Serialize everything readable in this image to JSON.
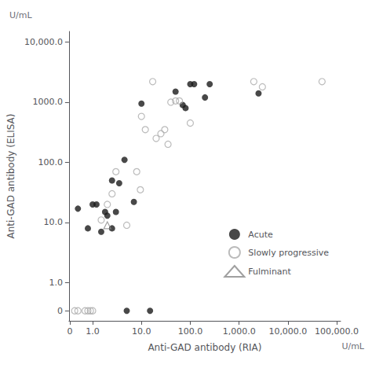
{
  "chart_data": {
    "type": "scatter",
    "xlabel": "Anti-GAD antibody (RIA)",
    "ylabel": "Anti-GAD antibody (ELISA)",
    "annotations": [
      "U/mL",
      "U/mL"
    ],
    "series": [
      {
        "name": "Acute",
        "color": "#1a1a1a",
        "marker": "circle",
        "x": [
          0.5,
          0.8,
          1.0,
          1.2,
          1.5,
          1.8,
          2.0,
          2.5,
          2.5,
          3.0,
          3.5,
          4.5,
          7.0,
          10.0,
          50.0,
          70.0,
          80.0,
          100.0,
          120.0,
          200.0,
          250.0,
          2500.0,
          5.0,
          15.0
        ],
        "values": [
          17.0,
          8.0,
          20.0,
          20.0,
          7.0,
          15.0,
          13.0,
          8.0,
          50.0,
          15.0,
          45.0,
          110.0,
          22.0,
          950.0,
          1500.0,
          900.0,
          800.0,
          2000.0,
          2000.0,
          1200.0,
          2000.0,
          1400.0,
          0.0,
          0.0
        ]
      },
      {
        "name": "Slowly progressive",
        "color": "#aaaaaa",
        "marker": "open_circle",
        "x": [
          0.3,
          0.5,
          0.7,
          0.8,
          0.9,
          1.0,
          1.5,
          2.0,
          2.5,
          3.0,
          5.0,
          8.0,
          9.5,
          20.0,
          25.0,
          30.0,
          35.0,
          40.0,
          50.0,
          60.0,
          100.0,
          17.0,
          2000.0,
          3000.0,
          50000.0,
          10.0,
          12.0
        ],
        "values": [
          0.0,
          0.0,
          0.0,
          0.0,
          0.0,
          0.0,
          11.0,
          20.0,
          30.0,
          70.0,
          9.0,
          70.0,
          35.0,
          250.0,
          300.0,
          350.0,
          200.0,
          1000.0,
          1050.0,
          1050.0,
          450.0,
          2200.0,
          2200.0,
          1800.0,
          2200.0,
          580.0,
          350.0
        ]
      },
      {
        "name": "Fulminant",
        "color": "#888888",
        "marker": "open_triangle",
        "x": [
          2.0
        ],
        "values": [
          9.0
        ]
      }
    ],
    "xlim": [
      -0.05,
      120000
    ],
    "ylim": [
      -0.5,
      15000
    ],
    "xticks": [
      0,
      {
        "value": 1,
        "label": "1.0"
      },
      {
        "value": 10,
        "label": "10.0"
      },
      {
        "value": 100,
        "label": "100.0"
      },
      {
        "value": 1000,
        "label": "1,000.0"
      },
      {
        "value": 10000,
        "label": "10,000.0"
      },
      {
        "value": 100000,
        "label": "100,000.0"
      }
    ],
    "yticks": [
      0,
      {
        "value": 1,
        "label": "1.0"
      },
      {
        "value": 10,
        "label": "10.0"
      },
      {
        "value": 100,
        "label": "100.0"
      },
      {
        "value": 1000,
        "label": "1000.0"
      },
      {
        "value": 10000,
        "label": "10,000.0"
      }
    ],
    "log": true,
    "grid": false,
    "legend": "lower right"
  }
}
